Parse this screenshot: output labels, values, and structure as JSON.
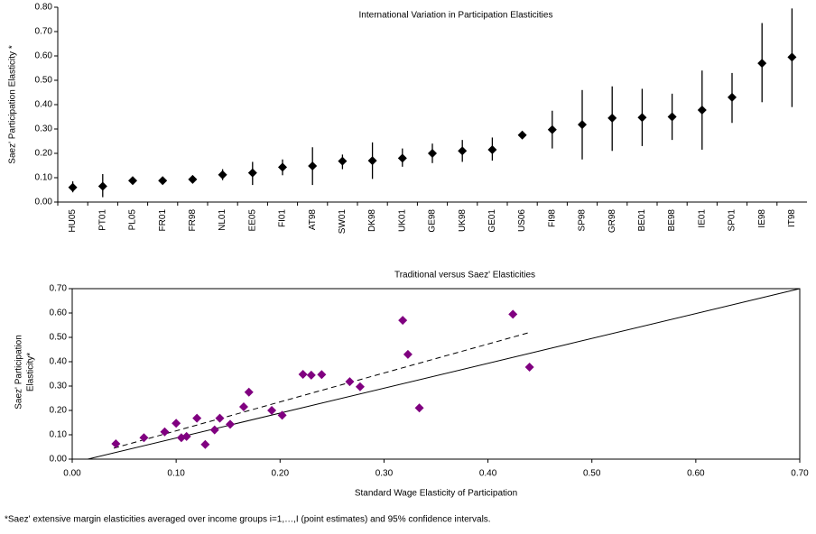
{
  "chart_data": [
    {
      "type": "errorbar",
      "title": "International Variation in Participation Elasticities",
      "ylabel": "Saez' Participation Elasticity *",
      "categories": [
        "HU05",
        "PT01",
        "PL05",
        "FR01",
        "FR98",
        "NL01",
        "EE05",
        "FI01",
        "AT98",
        "SW01",
        "DK98",
        "UK01",
        "GE98",
        "UK98",
        "GE01",
        "US06",
        "FI98",
        "SP98",
        "GR98",
        "BE01",
        "BE98",
        "IE01",
        "SP01",
        "IE98",
        "IT98"
      ],
      "values": [
        0.06,
        0.065,
        0.088,
        0.088,
        0.093,
        0.112,
        0.12,
        0.143,
        0.148,
        0.168,
        0.17,
        0.18,
        0.2,
        0.21,
        0.215,
        0.275,
        0.297,
        0.318,
        0.345,
        0.347,
        0.35,
        0.378,
        0.43,
        0.57,
        0.595
      ],
      "low": [
        0.04,
        0.02,
        0.085,
        0.085,
        0.09,
        0.09,
        0.07,
        0.11,
        0.07,
        0.135,
        0.095,
        0.145,
        0.16,
        0.165,
        0.17,
        0.27,
        0.22,
        0.175,
        0.21,
        0.23,
        0.255,
        0.215,
        0.325,
        0.41,
        0.39
      ],
      "high": [
        0.085,
        0.115,
        0.092,
        0.092,
        0.097,
        0.135,
        0.165,
        0.175,
        0.225,
        0.195,
        0.245,
        0.22,
        0.24,
        0.255,
        0.265,
        0.28,
        0.375,
        0.46,
        0.475,
        0.465,
        0.445,
        0.54,
        0.53,
        0.735,
        0.795
      ],
      "color": "#000000",
      "ylim": [
        0,
        0.8
      ],
      "yticks": [
        {
          "value": 0,
          "label": "0.00"
        },
        {
          "value": 0.1,
          "label": "0.10"
        },
        {
          "value": 0.2,
          "label": "0.20"
        },
        {
          "value": 0.3,
          "label": "0.30"
        },
        {
          "value": 0.4,
          "label": "0.40"
        },
        {
          "value": 0.5,
          "label": "0.50"
        },
        {
          "value": 0.6,
          "label": "0.60"
        },
        {
          "value": 0.7,
          "label": "0.70"
        },
        {
          "value": 0.8,
          "label": "0.80"
        }
      ]
    },
    {
      "type": "scatter",
      "title": "Traditional versus Saez' Elasticities",
      "xlabel": "Standard Wage Elasticity of Participation",
      "ylabel": [
        "Saez' Participation",
        "Elasticity*"
      ],
      "x": [
        0.042,
        0.069,
        0.089,
        0.1,
        0.105,
        0.11,
        0.12,
        0.128,
        0.137,
        0.142,
        0.152,
        0.165,
        0.17,
        0.192,
        0.202,
        0.222,
        0.23,
        0.24,
        0.267,
        0.277,
        0.318,
        0.323,
        0.334,
        0.424,
        0.44
      ],
      "y": [
        0.063,
        0.088,
        0.112,
        0.147,
        0.088,
        0.093,
        0.168,
        0.06,
        0.12,
        0.168,
        0.143,
        0.215,
        0.275,
        0.2,
        0.18,
        0.348,
        0.345,
        0.347,
        0.318,
        0.297,
        0.57,
        0.43,
        0.21,
        0.595,
        0.378
      ],
      "color": "#800080",
      "lines": [
        {
          "x": [
            0.015,
            0.7
          ],
          "y": [
            0,
            0.7
          ],
          "style": "solid"
        },
        {
          "x": [
            0.04,
            0.44
          ],
          "y": [
            0.045,
            0.52
          ],
          "style": "dashed"
        }
      ],
      "xlim": [
        0,
        0.7
      ],
      "ylim": [
        0,
        0.7
      ],
      "xticks": [
        {
          "value": 0,
          "label": "0.00"
        },
        {
          "value": 0.1,
          "label": "0.10"
        },
        {
          "value": 0.2,
          "label": "0.20"
        },
        {
          "value": 0.3,
          "label": "0.30"
        },
        {
          "value": 0.4,
          "label": "0.40"
        },
        {
          "value": 0.5,
          "label": "0.50"
        },
        {
          "value": 0.6,
          "label": "0.60"
        },
        {
          "value": 0.7,
          "label": "0.70"
        }
      ],
      "yticks": [
        {
          "value": 0,
          "label": "0.00"
        },
        {
          "value": 0.1,
          "label": "0.10"
        },
        {
          "value": 0.2,
          "label": "0.20"
        },
        {
          "value": 0.3,
          "label": "0.30"
        },
        {
          "value": 0.4,
          "label": "0.40"
        },
        {
          "value": 0.5,
          "label": "0.50"
        },
        {
          "value": 0.6,
          "label": "0.60"
        },
        {
          "value": 0.7,
          "label": "0.70"
        }
      ]
    }
  ],
  "footnote": "*Saez' extensive margin elasticities averaged over income groups i=1,…,I (point estimates) and 95% confidence intervals."
}
